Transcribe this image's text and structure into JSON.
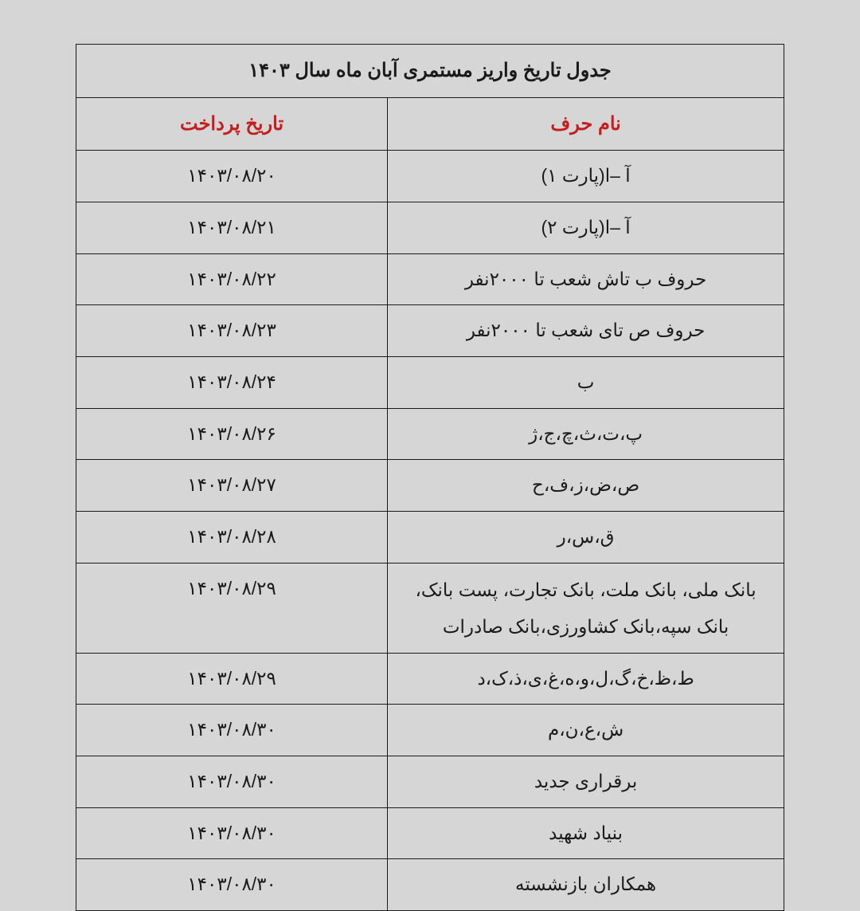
{
  "table": {
    "title": "جدول تاریخ واریز مستمری آبان ماه سال ۱۴۰۳",
    "headers": {
      "letter_name": "نام حرف",
      "payment_date": "تاریخ پرداخت"
    },
    "rows": [
      {
        "letter": "آ –ا(پارت ۱)",
        "date": "۱۴۰۳/۰۸/۲۰"
      },
      {
        "letter": "آ –ا(پارت ۲)",
        "date": "۱۴۰۳/۰۸/۲۱"
      },
      {
        "letter": "حروف ب تاش شعب تا ۲۰۰۰نفر",
        "date": "۱۴۰۳/۰۸/۲۲"
      },
      {
        "letter": "حروف ص تای شعب تا ۲۰۰۰نفر",
        "date": "۱۴۰۳/۰۸/۲۳"
      },
      {
        "letter": "ب",
        "date": "۱۴۰۳/۰۸/۲۴"
      },
      {
        "letter": "پ،ت،ث،چ،ج،ژ",
        "date": "۱۴۰۳/۰۸/۲۶"
      },
      {
        "letter": "ص،ض،ز،ف،ح",
        "date": "۱۴۰۳/۰۸/۲۷"
      },
      {
        "letter": "ق،س،ر",
        "date": "۱۴۰۳/۰۸/۲۸"
      },
      {
        "letter": "بانک ملی، بانک ملت، بانک تجارت، پست بانک، بانک سپه،بانک کشاورزی،بانک صادرات",
        "date": "۱۴۰۳/۰۸/۲۹"
      },
      {
        "letter": "ط،ظ،خ،گ،ل،و،ه،غ،ی،ذ،ک،د",
        "date": "۱۴۰۳/۰۸/۲۹"
      },
      {
        "letter": "ش،ع،ن،م",
        "date": "۱۴۰۳/۰۸/۳۰"
      },
      {
        "letter": "برقراری جدید",
        "date": "۱۴۰۳/۰۸/۳۰"
      },
      {
        "letter": "بنیاد شهید",
        "date": "۱۴۰۳/۰۸/۳۰"
      },
      {
        "letter": "همکاران بازنشسته",
        "date": "۱۴۰۳/۰۸/۳۰"
      }
    ],
    "styling": {
      "background_color": "#d6d6d6",
      "border_color": "#1a1a1a",
      "title_color": "#1a1a1a",
      "header_color": "#c41e1e",
      "text_color": "#1a1a1a",
      "title_fontsize": 24,
      "header_fontsize": 24,
      "cell_fontsize": 23,
      "col_letter_width_pct": 56,
      "col_date_width_pct": 44
    }
  }
}
